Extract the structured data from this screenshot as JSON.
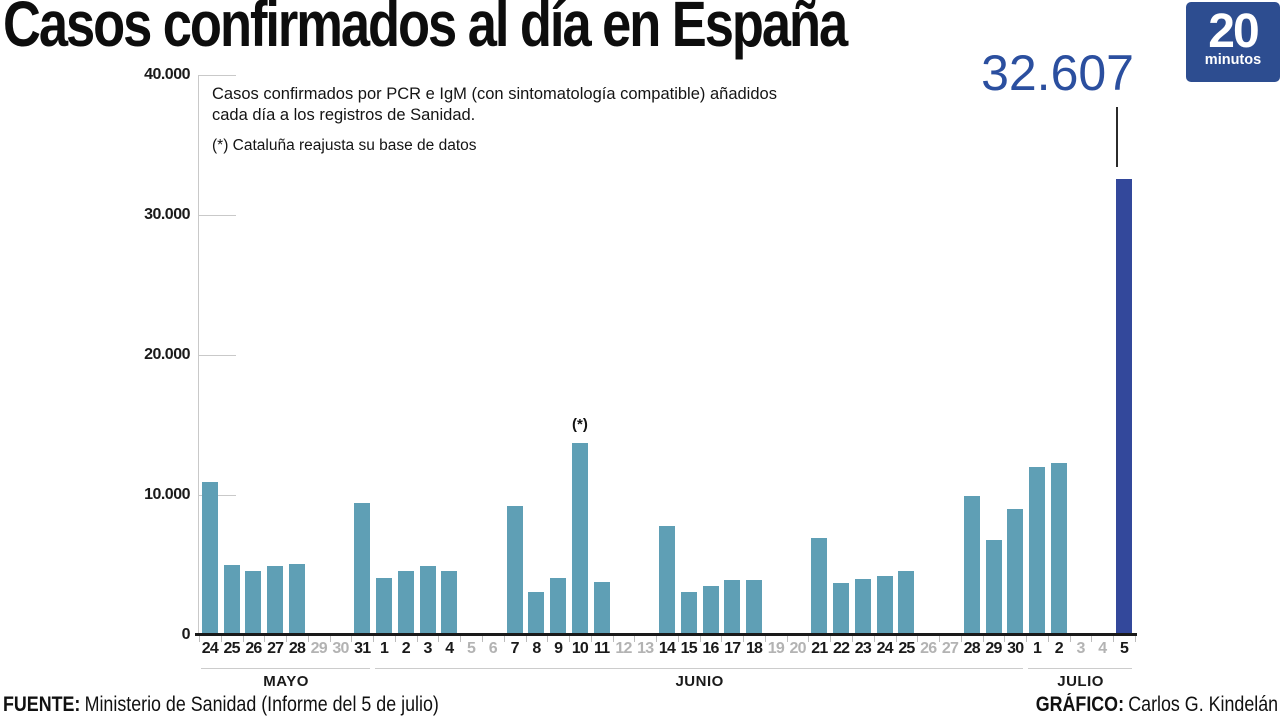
{
  "header": {
    "title": "Casos confirmados al día en España",
    "big_number": "32.607"
  },
  "logo": {
    "number": "20",
    "word": "minutos"
  },
  "chart": {
    "subtitle_lines": [
      "Casos confirmados por PCR e IgM (con sintomatología compatible) añadidos",
      "cada día a los registros de Sanidad."
    ],
    "footnote": "(*) Cataluña reajusta su base de datos"
  },
  "footer": {
    "source_label": "FUENTE:",
    "source_text": "Ministerio de Sanidad (Informe del 5 de julio)",
    "credit_label": "GRÁFICO:",
    "credit_text": "Carlos G. Kindelán"
  },
  "colors": {
    "bar": "#5f9fb5",
    "bar_highlight": "#33489b",
    "accent_blue": "#2b4f9f",
    "logo_blue": "#2d4d90",
    "ink": "#1a1a1a",
    "muted_label": "#b3b3b3",
    "grid": "#c9c9c9"
  },
  "chart_data": {
    "type": "bar",
    "title": "Casos confirmados al día en España",
    "xlabel": "",
    "ylabel": "",
    "ylim": [
      0,
      40000
    ],
    "yticks": [
      0,
      10000,
      20000,
      30000,
      40000
    ],
    "ytick_labels": [
      "0",
      "10.000",
      "20.000",
      "30.000",
      "40.000"
    ],
    "grid": "ticks-only",
    "legend": "none",
    "annotation": {
      "text": "(*)",
      "month": "JUNIO",
      "day": 10
    },
    "peak_label": {
      "text": "32.607",
      "month": "JULIO",
      "day": 5
    },
    "days": [
      {
        "m": "MAYO",
        "d": 24,
        "v": 10900
      },
      {
        "m": "MAYO",
        "d": 25,
        "v": 5000
      },
      {
        "m": "MAYO",
        "d": 26,
        "v": 4600
      },
      {
        "m": "MAYO",
        "d": 27,
        "v": 4900
      },
      {
        "m": "MAYO",
        "d": 28,
        "v": 5100
      },
      {
        "m": "MAYO",
        "d": 29,
        "v": null
      },
      {
        "m": "MAYO",
        "d": 30,
        "v": null
      },
      {
        "m": "MAYO",
        "d": 31,
        "v": 9400
      },
      {
        "m": "JUNIO",
        "d": 1,
        "v": 4100
      },
      {
        "m": "JUNIO",
        "d": 2,
        "v": 4600
      },
      {
        "m": "JUNIO",
        "d": 3,
        "v": 4900
      },
      {
        "m": "JUNIO",
        "d": 4,
        "v": 4600
      },
      {
        "m": "JUNIO",
        "d": 5,
        "v": null
      },
      {
        "m": "JUNIO",
        "d": 6,
        "v": null
      },
      {
        "m": "JUNIO",
        "d": 7,
        "v": 9200
      },
      {
        "m": "JUNIO",
        "d": 8,
        "v": 3100
      },
      {
        "m": "JUNIO",
        "d": 9,
        "v": 4100
      },
      {
        "m": "JUNIO",
        "d": 10,
        "v": 13700,
        "note": "(*)"
      },
      {
        "m": "JUNIO",
        "d": 11,
        "v": 3800
      },
      {
        "m": "JUNIO",
        "d": 12,
        "v": null
      },
      {
        "m": "JUNIO",
        "d": 13,
        "v": null
      },
      {
        "m": "JUNIO",
        "d": 14,
        "v": 7800
      },
      {
        "m": "JUNIO",
        "d": 15,
        "v": 3100
      },
      {
        "m": "JUNIO",
        "d": 16,
        "v": 3500
      },
      {
        "m": "JUNIO",
        "d": 17,
        "v": 3900
      },
      {
        "m": "JUNIO",
        "d": 18,
        "v": 3900
      },
      {
        "m": "JUNIO",
        "d": 19,
        "v": null
      },
      {
        "m": "JUNIO",
        "d": 20,
        "v": null
      },
      {
        "m": "JUNIO",
        "d": 21,
        "v": 6900
      },
      {
        "m": "JUNIO",
        "d": 22,
        "v": 3700
      },
      {
        "m": "JUNIO",
        "d": 23,
        "v": 4000
      },
      {
        "m": "JUNIO",
        "d": 24,
        "v": 4200
      },
      {
        "m": "JUNIO",
        "d": 25,
        "v": 4600
      },
      {
        "m": "JUNIO",
        "d": 26,
        "v": null
      },
      {
        "m": "JUNIO",
        "d": 27,
        "v": null
      },
      {
        "m": "JUNIO",
        "d": 28,
        "v": 9900
      },
      {
        "m": "JUNIO",
        "d": 29,
        "v": 6800
      },
      {
        "m": "JUNIO",
        "d": 30,
        "v": 9000
      },
      {
        "m": "JULIO",
        "d": 1,
        "v": 12000
      },
      {
        "m": "JULIO",
        "d": 2,
        "v": 12300
      },
      {
        "m": "JULIO",
        "d": 3,
        "v": null
      },
      {
        "m": "JULIO",
        "d": 4,
        "v": null
      },
      {
        "m": "JULIO",
        "d": 5,
        "v": 32607,
        "highlight": true
      }
    ]
  }
}
